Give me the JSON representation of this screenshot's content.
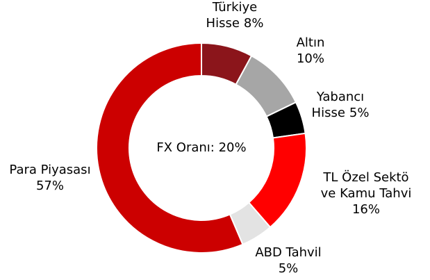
{
  "chart_data": {
    "type": "donut",
    "annotation": "FX Oranı: 20%",
    "categories": [
      "Türkiye\nHisse",
      "Altın",
      "Yabancı\nHisse",
      "TL Özel Sektö\nve Kamu Tahvi",
      "ABD Tahvil",
      "Para Piyasası"
    ],
    "values": [
      8,
      10,
      5,
      16,
      5,
      57
    ],
    "value_labels": [
      "8%",
      "10%",
      "5%",
      "16%",
      "5%",
      "57%"
    ],
    "colors": [
      "#8b151b",
      "#a6a6a6",
      "#000000",
      "#ff0000",
      "#e3e3e3",
      "#cc0000"
    ]
  }
}
